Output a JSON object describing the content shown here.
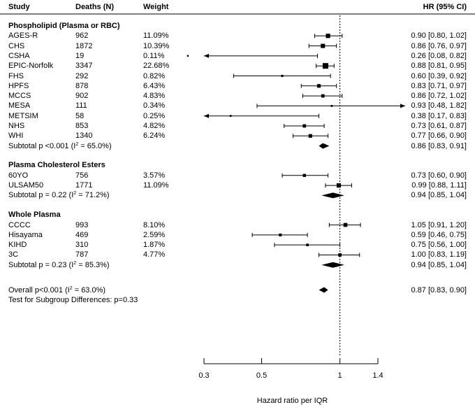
{
  "chart_data": {
    "type": "forest",
    "headers": {
      "study": "Study",
      "deaths": "Deaths (N)",
      "weight": "Weight",
      "hr": "HR (95% CI)"
    },
    "x_scale": "log",
    "xlim": [
      0.3,
      1.4
    ],
    "xticks": [
      0.3,
      0.5,
      1,
      1.4
    ],
    "xtick_labels": [
      "0.3",
      "0.5",
      "1",
      "1.4"
    ],
    "xlabel": "Hazard ratio per IQR",
    "reference_line": 1,
    "groups": [
      {
        "title": "Phospholipid (Plasma or RBC)",
        "studies": [
          {
            "study": "AGES-R",
            "deaths": "962",
            "weight": "11.09%",
            "hr": 0.9,
            "lo": 0.8,
            "hi": 1.02,
            "hr_text": "0.90 [0.80, 1.02]"
          },
          {
            "study": "CHS",
            "deaths": "1872",
            "weight": "10.39%",
            "hr": 0.86,
            "lo": 0.76,
            "hi": 0.97,
            "hr_text": "0.86 [0.76, 0.97]"
          },
          {
            "study": "CSHA",
            "deaths": "19",
            "weight": "0.11%",
            "hr": 0.26,
            "lo": 0.08,
            "hi": 0.82,
            "hr_text": "0.26 [0.08, 0.82]"
          },
          {
            "study": "EPIC-Norfolk",
            "deaths": "3347",
            "weight": "22.68%",
            "hr": 0.88,
            "lo": 0.81,
            "hi": 0.95,
            "hr_text": "0.88 [0.81, 0.95]"
          },
          {
            "study": "FHS",
            "deaths": "292",
            "weight": "0.82%",
            "hr": 0.6,
            "lo": 0.39,
            "hi": 0.92,
            "hr_text": "0.60 [0.39, 0.92]"
          },
          {
            "study": "HPFS",
            "deaths": "878",
            "weight": "6.43%",
            "hr": 0.83,
            "lo": 0.71,
            "hi": 0.97,
            "hr_text": "0.83 [0.71, 0.97]"
          },
          {
            "study": "MCCS",
            "deaths": "902",
            "weight": "4.83%",
            "hr": 0.86,
            "lo": 0.72,
            "hi": 1.02,
            "hr_text": "0.86 [0.72, 1.02]"
          },
          {
            "study": "MESA",
            "deaths": "111",
            "weight": "0.34%",
            "hr": 0.93,
            "lo": 0.48,
            "hi": 1.82,
            "hr_text": "0.93 [0.48, 1.82]"
          },
          {
            "study": "METSIM",
            "deaths": "58",
            "weight": "0.25%",
            "hr": 0.38,
            "lo": 0.17,
            "hi": 0.83,
            "hr_text": "0.38 [0.17, 0.83]"
          },
          {
            "study": "NHS",
            "deaths": "853",
            "weight": "4.82%",
            "hr": 0.73,
            "lo": 0.61,
            "hi": 0.87,
            "hr_text": "0.73 [0.61, 0.87]"
          },
          {
            "study": "WHI",
            "deaths": "1340",
            "weight": "6.24%",
            "hr": 0.77,
            "lo": 0.66,
            "hi": 0.9,
            "hr_text": "0.77 [0.66, 0.90]"
          }
        ],
        "subtotal": {
          "label_pre": "Subtotal p <0.001 (I",
          "label_post": " = 65.0%)",
          "hr": 0.86,
          "lo": 0.83,
          "hi": 0.91,
          "hr_text": "0.86 [0.83, 0.91]"
        }
      },
      {
        "title": "Plasma Cholesterol Esters",
        "studies": [
          {
            "study": "60YO",
            "deaths": "756",
            "weight": "3.57%",
            "hr": 0.73,
            "lo": 0.6,
            "hi": 0.9,
            "hr_text": "0.73 [0.60, 0.90]"
          },
          {
            "study": "ULSAM50",
            "deaths": "1771",
            "weight": "11.09%",
            "hr": 0.99,
            "lo": 0.88,
            "hi": 1.11,
            "hr_text": "0.99 [0.88, 1.11]"
          }
        ],
        "subtotal": {
          "label_pre": "Subtotal p = 0.22 (I",
          "label_post": " = 71.2%)",
          "hr": 0.94,
          "lo": 0.85,
          "hi": 1.04,
          "hr_text": "0.94 [0.85, 1.04]"
        }
      },
      {
        "title": "Whole Plasma",
        "studies": [
          {
            "study": "CCCC",
            "deaths": "993",
            "weight": "8.10%",
            "hr": 1.05,
            "lo": 0.91,
            "hi": 1.2,
            "hr_text": "1.05 [0.91, 1.20]"
          },
          {
            "study": "Hisayama",
            "deaths": "469",
            "weight": "2.59%",
            "hr": 0.59,
            "lo": 0.46,
            "hi": 0.75,
            "hr_text": "0.59 [0.46, 0.75]"
          },
          {
            "study": "KIHD",
            "deaths": "310",
            "weight": "1.87%",
            "hr": 0.75,
            "lo": 0.56,
            "hi": 1.0,
            "hr_text": "0.75 [0.56, 1.00]"
          },
          {
            "study": "3C",
            "deaths": "787",
            "weight": "4.77%",
            "hr": 1.0,
            "lo": 0.83,
            "hi": 1.19,
            "hr_text": "1.00 [0.83, 1.19]"
          }
        ],
        "subtotal": {
          "label_pre": "Subtotal p = 0.23 (I",
          "label_post": " = 85.3%)",
          "hr": 0.94,
          "lo": 0.85,
          "hi": 1.04,
          "hr_text": "0.94 [0.85, 1.04]"
        }
      }
    ],
    "overall": {
      "label_pre": "Overall p<0.001 (I",
      "label_post": " = 63.0%)",
      "hr": 0.87,
      "lo": 0.83,
      "hi": 0.9,
      "hr_text": "0.87 [0.83, 0.90]"
    },
    "superscript": "2",
    "subgroup_test": "Test for Subgroup Differences: p=0.33"
  }
}
